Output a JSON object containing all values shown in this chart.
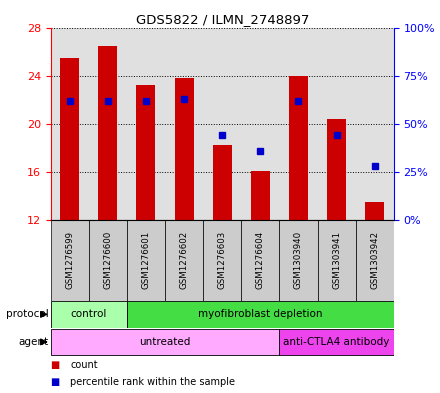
{
  "title": "GDS5822 / ILMN_2748897",
  "samples": [
    "GSM1276599",
    "GSM1276600",
    "GSM1276601",
    "GSM1276602",
    "GSM1276603",
    "GSM1276604",
    "GSM1303940",
    "GSM1303941",
    "GSM1303942"
  ],
  "count_values": [
    25.5,
    26.5,
    23.2,
    23.8,
    18.2,
    16.1,
    24.0,
    20.4,
    13.5
  ],
  "percentile_values": [
    62,
    62,
    62,
    63,
    44,
    36,
    62,
    44,
    28
  ],
  "ylim_left": [
    12,
    28
  ],
  "ylim_right": [
    0,
    100
  ],
  "yticks_left": [
    12,
    16,
    20,
    24,
    28
  ],
  "yticks_right": [
    0,
    25,
    50,
    75,
    100
  ],
  "ytick_labels_right": [
    "0%",
    "25%",
    "50%",
    "75%",
    "100%"
  ],
  "bar_color": "#cc0000",
  "percentile_color": "#0000cc",
  "bar_bottom": 12,
  "bg_color": "#e0e0e0",
  "control_color": "#aaffaa",
  "myofib_color": "#44dd44",
  "untreated_color": "#ffaaff",
  "antibody_color": "#ee44ee",
  "legend_items": [
    {
      "label": "count",
      "color": "#cc0000"
    },
    {
      "label": "percentile rank within the sample",
      "color": "#0000cc"
    }
  ]
}
